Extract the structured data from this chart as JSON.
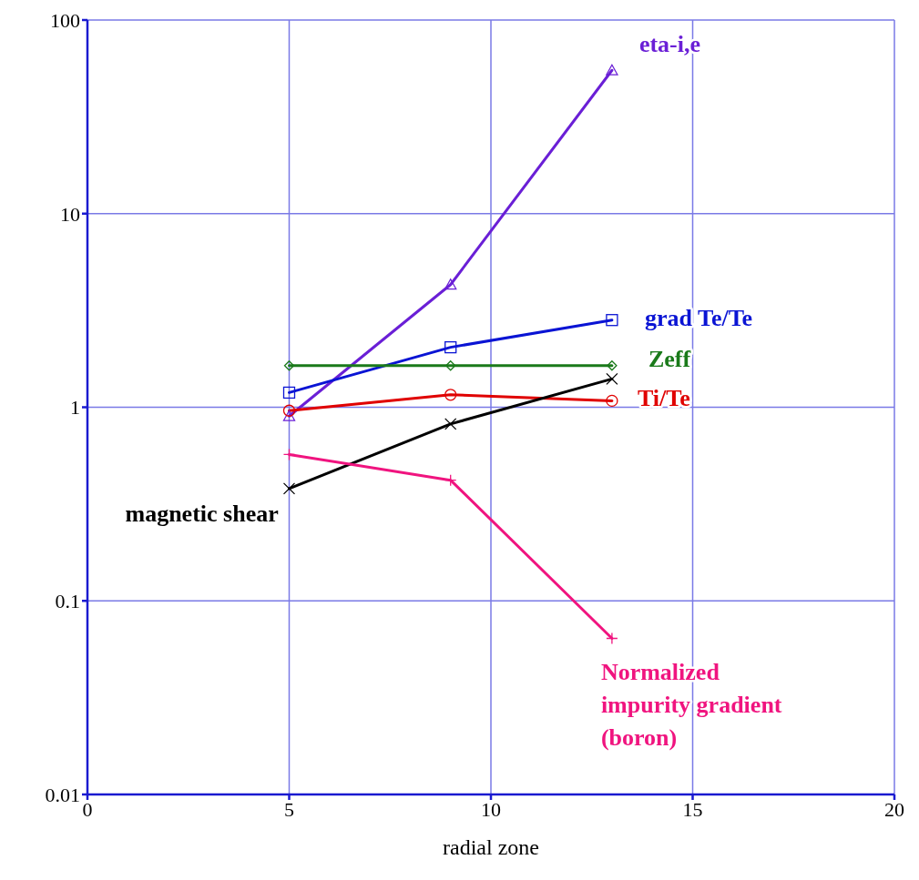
{
  "chart_data": {
    "type": "line",
    "xlabel": "radial zone",
    "log": "y",
    "grid": true,
    "line_style": "solid",
    "xlim": [
      0,
      20
    ],
    "xticks": [
      0,
      5,
      10,
      15,
      20
    ],
    "ylim": [
      0.01,
      100
    ],
    "yticks": [
      0.01,
      0.1,
      1,
      10,
      100
    ],
    "x": [
      5,
      9,
      13
    ],
    "series": [
      {
        "name": "eta-i,e",
        "color": "#6a1fd6",
        "marker": "triangle",
        "values": [
          0.9,
          4.3,
          55
        ]
      },
      {
        "name": "grad Te/Te",
        "color": "#0a14d4",
        "marker": "square",
        "values": [
          1.19,
          2.04,
          2.82
        ]
      },
      {
        "name": "Zeff",
        "color": "#1a7a1a",
        "marker": "diamond",
        "values": [
          1.64,
          1.64,
          1.64
        ]
      },
      {
        "name": "Ti/Te",
        "color": "#e00000",
        "marker": "circle",
        "values": [
          0.96,
          1.16,
          1.08
        ]
      },
      {
        "name": "magnetic shear",
        "color": "#000000",
        "marker": "cross",
        "values": [
          0.38,
          0.82,
          1.4
        ]
      },
      {
        "name": "Normalized impurity gradient (boron)",
        "color": "#f0147f",
        "marker": "plus",
        "values": [
          0.57,
          0.42,
          0.064
        ]
      }
    ]
  }
}
